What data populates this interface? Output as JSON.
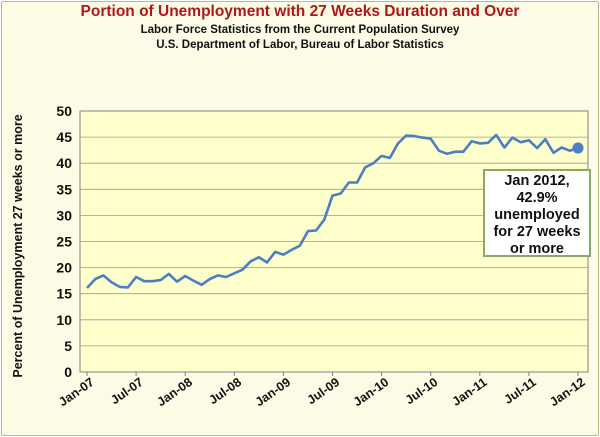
{
  "chart_data": {
    "type": "line",
    "title": "Portion of Unemployment with 27 Weeks Duration and Over",
    "subtitle_lines": [
      "Labor Force Statistics from the Current Population Survey",
      "U.S. Department of Labor, Bureau of Labor Statistics"
    ],
    "xlabel": "",
    "ylabel": "Percent of Unemployment 27 weeks or more",
    "ylim": [
      0,
      50
    ],
    "yticks": [
      "0",
      "5",
      "10",
      "15",
      "20",
      "25",
      "30",
      "35",
      "40",
      "45",
      "50"
    ],
    "xtick_labels": [
      "Jan-07",
      "Jul-07",
      "Jan-08",
      "Jul-08",
      "Jan-09",
      "Jul-09",
      "Jan-10",
      "Jul-10",
      "Jan-11",
      "Jul-11",
      "Jan-12"
    ],
    "grid": "horizontal",
    "series": [
      {
        "color": "#4a7fc1",
        "x": [
          "Jan-07",
          "Feb-07",
          "Mar-07",
          "Apr-07",
          "May-07",
          "Jun-07",
          "Jul-07",
          "Aug-07",
          "Sep-07",
          "Oct-07",
          "Nov-07",
          "Dec-07",
          "Jan-08",
          "Feb-08",
          "Mar-08",
          "Apr-08",
          "May-08",
          "Jun-08",
          "Jul-08",
          "Aug-08",
          "Sep-08",
          "Oct-08",
          "Nov-08",
          "Dec-08",
          "Jan-09",
          "Feb-09",
          "Mar-09",
          "Apr-09",
          "May-09",
          "Jun-09",
          "Jul-09",
          "Aug-09",
          "Sep-09",
          "Oct-09",
          "Nov-09",
          "Dec-09",
          "Jan-10",
          "Feb-10",
          "Mar-10",
          "Apr-10",
          "May-10",
          "Jun-10",
          "Jul-10",
          "Aug-10",
          "Sep-10",
          "Oct-10",
          "Nov-10",
          "Dec-10",
          "Jan-11",
          "Feb-11",
          "Mar-11",
          "Apr-11",
          "May-11",
          "Jun-11",
          "Jul-11",
          "Aug-11",
          "Sep-11",
          "Oct-11",
          "Nov-11",
          "Dec-11",
          "Jan-12"
        ],
        "values": [
          16.1,
          17.8,
          18.5,
          17.2,
          16.3,
          16.2,
          18.2,
          17.4,
          17.4,
          17.6,
          18.8,
          17.3,
          18.4,
          17.5,
          16.7,
          17.8,
          18.5,
          18.2,
          18.9,
          19.6,
          21.2,
          22.0,
          21.0,
          23.0,
          22.5,
          23.4,
          24.2,
          27.0,
          27.1,
          29.2,
          33.8,
          34.2,
          36.3,
          36.3,
          39.2,
          40.0,
          41.4,
          41.0,
          43.8,
          45.3,
          45.2,
          44.9,
          44.7,
          42.4,
          41.8,
          42.2,
          42.2,
          44.2,
          43.8,
          43.9,
          45.4,
          43.0,
          44.9,
          44.0,
          44.4,
          42.9,
          44.6,
          42.0,
          43.0,
          42.4,
          42.9
        ]
      }
    ]
  },
  "annotation": {
    "lines": [
      "Jan 2012,",
      "42.9%",
      "unemployed",
      "for 27 weeks",
      "or more"
    ]
  },
  "colors": {
    "title": "#b01818",
    "plot_background": "#ffffcc",
    "line": "#4a7fc1"
  }
}
